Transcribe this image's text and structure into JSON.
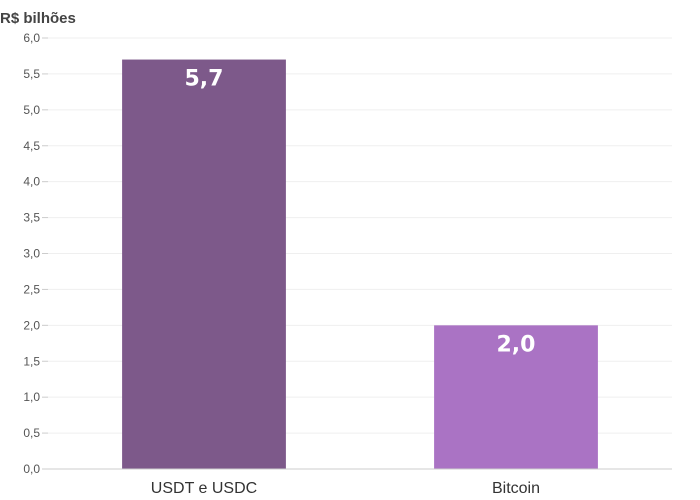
{
  "chart_data": {
    "type": "bar",
    "ylabel": "R$ bilhões",
    "categories": [
      "USDT e USDC",
      "Bitcoin"
    ],
    "values": [
      5.7,
      2.0
    ],
    "value_labels": [
      "5,7",
      "2,0"
    ],
    "colors": [
      "#7d598a",
      "#aa73c4"
    ],
    "ylim": [
      0,
      6
    ],
    "yticks": [
      0,
      0.5,
      1,
      1.5,
      2,
      2.5,
      3,
      3.5,
      4,
      4.5,
      5,
      5.5,
      6
    ],
    "ytick_labels": [
      "0,0",
      "0,5",
      "1,0",
      "1,5",
      "2,0",
      "2,5",
      "3,0",
      "3,5",
      "4,0",
      "4,5",
      "5,0",
      "5,5",
      "6,0"
    ],
    "grid": true
  }
}
